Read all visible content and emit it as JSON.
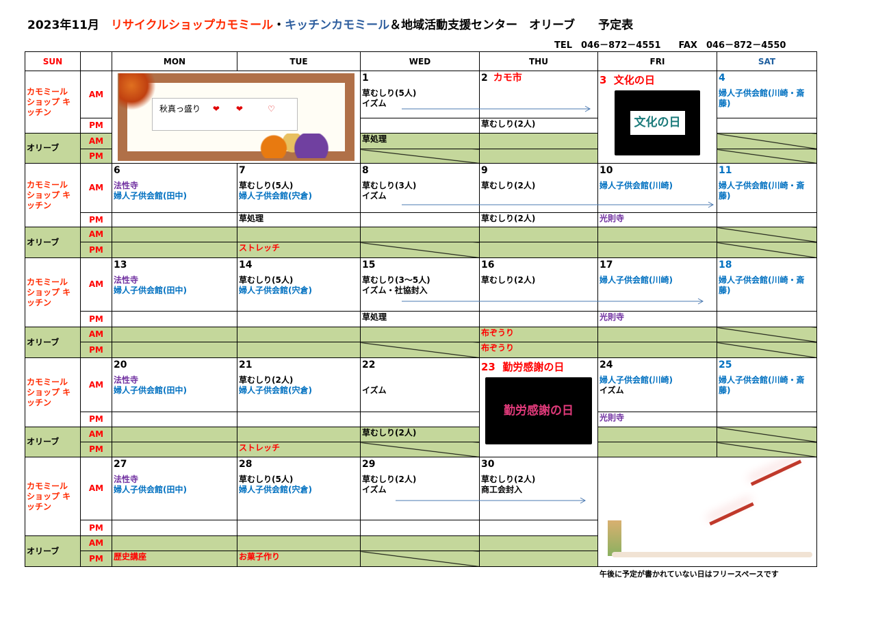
{
  "title": {
    "date": "2023年11月",
    "shop": "リサイクルショップカモミール",
    "dot": "・",
    "kitchen": "キッチンカモミール",
    "rest": "＆地域活動支援センター　オリーブ　　予定表"
  },
  "contact": "TEL　046－872－4551　　FAX　046－872－4550",
  "headers": [
    "SUN",
    "",
    "MON",
    "TUE",
    "WED",
    "THU",
    "FRI",
    "SAT"
  ],
  "group_shop": "カモミール ショップ キッチン",
  "group_olive": "オリーブ",
  "am": "AM",
  "pm": "PM",
  "autumn_card": {
    "text": "秋真っ盛り",
    "hearts": "❤　　❤　　　♡"
  },
  "bunka": {
    "num": "3",
    "name": "文化の日",
    "pic_text": "文化の日"
  },
  "kinro": {
    "num": "23",
    "name": "勤労感謝の日",
    "pic_text": "勤労感謝の日"
  },
  "footer": "午後に予定が書かれていない日はフリースペースです",
  "colors": {
    "olive": "#c4d79b",
    "red": "#ff0000",
    "blue": "#0070c0",
    "purple": "#7030a0"
  },
  "weeks": [
    {
      "days": [
        {
          "skip": true
        },
        {
          "skip": true
        },
        {
          "num": "1",
          "am": [
            {
              "t": "草むしり(5人)",
              "c": "black"
            },
            {
              "t": "イズム",
              "c": "black"
            }
          ],
          "pm": [],
          "oam": [
            {
              "t": "草処理",
              "c": "black"
            }
          ],
          "opm": "diag"
        },
        {
          "num": "2",
          "title": "カモ市",
          "am": [],
          "pm": [
            {
              "t": "草むしり(2人)",
              "c": "black"
            }
          ],
          "oam": [],
          "opm": []
        },
        {
          "special": "bunka"
        },
        {
          "num": "4",
          "numc": "blue",
          "am": [
            {
              "t": "婦人子供会館(川崎・斎藤)",
              "c": "blue"
            }
          ],
          "pm": [],
          "oam": "diag",
          "opm": "diag"
        }
      ]
    },
    {
      "days": [
        {
          "num": "6",
          "am": [
            {
              "t": "法性寺",
              "c": "purple"
            },
            {
              "t": "婦人子供会館(田中)",
              "c": "blue"
            }
          ],
          "pm": [],
          "oam": [],
          "opm": []
        },
        {
          "num": "7",
          "am": [
            {
              "t": "草むしり(5人)",
              "c": "black"
            },
            {
              "t": "婦人子供会館(宍倉)",
              "c": "blue"
            }
          ],
          "pm": [
            {
              "t": "草処理",
              "c": "black"
            }
          ],
          "oam": [],
          "opm": [
            {
              "t": "ストレッチ",
              "c": "red"
            }
          ]
        },
        {
          "num": "8",
          "am": [
            {
              "t": "草むしり(3人)",
              "c": "black"
            },
            {
              "t": "イズム",
              "c": "black"
            }
          ],
          "pm": [],
          "oam": [],
          "opm": "diag"
        },
        {
          "num": "9",
          "am": [
            {
              "t": "草むしり(2人)",
              "c": "black"
            }
          ],
          "pm": [
            {
              "t": "草むしり(2人)",
              "c": "black"
            }
          ],
          "oam": [],
          "opm": []
        },
        {
          "num": "10",
          "am": [
            {
              "t": "婦人子供会館(川崎)",
              "c": "blue"
            }
          ],
          "pm": [
            {
              "t": "光則寺",
              "c": "purple"
            }
          ],
          "oam": [],
          "opm": []
        },
        {
          "num": "11",
          "numc": "blue",
          "am": [
            {
              "t": "婦人子供会館(川崎・斎藤)",
              "c": "blue"
            }
          ],
          "pm": [],
          "oam": "diag",
          "opm": "diag"
        }
      ]
    },
    {
      "days": [
        {
          "num": "13",
          "am": [
            {
              "t": "法性寺",
              "c": "purple"
            },
            {
              "t": "婦人子供会館(田中)",
              "c": "blue"
            }
          ],
          "pm": [],
          "oam": [],
          "opm": []
        },
        {
          "num": "14",
          "am": [
            {
              "t": "草むしり(5人)",
              "c": "black"
            },
            {
              "t": "婦人子供会館(宍倉)",
              "c": "blue"
            }
          ],
          "pm": [],
          "oam": [],
          "opm": []
        },
        {
          "num": "15",
          "am": [
            {
              "t": "草むしり(3～5人)",
              "c": "black"
            },
            {
              "t": "イズム・社協封入",
              "c": "black"
            }
          ],
          "pm": [
            {
              "t": "草処理",
              "c": "black"
            }
          ],
          "oam": [],
          "opm": "diag"
        },
        {
          "num": "16",
          "am": [
            {
              "t": "草むしり(2人)",
              "c": "black"
            }
          ],
          "pm": [],
          "oam": [
            {
              "t": "布ぞうり",
              "c": "red"
            }
          ],
          "opm": [
            {
              "t": "布ぞうり",
              "c": "red"
            }
          ]
        },
        {
          "num": "17",
          "am": [
            {
              "t": "婦人子供会館(川崎)",
              "c": "blue"
            }
          ],
          "pm": [
            {
              "t": "光則寺",
              "c": "purple"
            }
          ],
          "oam": [],
          "opm": []
        },
        {
          "num": "18",
          "numc": "blue",
          "am": [
            {
              "t": "婦人子供会館(川崎・斎藤)",
              "c": "blue"
            }
          ],
          "pm": [],
          "oam": "diag",
          "opm": "diag"
        }
      ]
    },
    {
      "days": [
        {
          "num": "20",
          "am": [
            {
              "t": "法性寺",
              "c": "purple"
            },
            {
              "t": "婦人子供会館(田中)",
              "c": "blue"
            }
          ],
          "pm": [],
          "oam": [],
          "opm": []
        },
        {
          "num": "21",
          "am": [
            {
              "t": "草むしり(2人)",
              "c": "black"
            },
            {
              "t": "婦人子供会館(宍倉)",
              "c": "blue"
            }
          ],
          "pm": [],
          "oam": [],
          "opm": [
            {
              "t": "ストレッチ",
              "c": "red"
            }
          ]
        },
        {
          "num": "22",
          "am": [
            {
              "t": "",
              "c": "black"
            },
            {
              "t": "イズム",
              "c": "black"
            }
          ],
          "pm": [],
          "oam": [
            {
              "t": "草むしり(2人)",
              "c": "black"
            }
          ],
          "opm": "diag"
        },
        {
          "special": "kinro"
        },
        {
          "num": "24",
          "am": [
            {
              "t": "婦人子供会館(川崎)",
              "c": "blue"
            },
            {
              "t": "イズム",
              "c": "black"
            }
          ],
          "pm": [
            {
              "t": "光則寺",
              "c": "purple"
            }
          ],
          "oam": [],
          "opm": []
        },
        {
          "num": "25",
          "numc": "blue",
          "am": [
            {
              "t": "婦人子供会館(川崎・斎藤)",
              "c": "blue"
            }
          ],
          "pm": [],
          "oam": "diag",
          "opm": "diag"
        }
      ]
    },
    {
      "days": [
        {
          "num": "27",
          "am": [
            {
              "t": "法性寺",
              "c": "purple"
            },
            {
              "t": "婦人子供会館(田中)",
              "c": "blue"
            }
          ],
          "pm": [],
          "oam": [],
          "opm": [
            {
              "t": "歴史講座",
              "c": "red"
            }
          ]
        },
        {
          "num": "28",
          "am": [
            {
              "t": "草むしり(5人)",
              "c": "black"
            },
            {
              "t": "婦人子供会館(宍倉)",
              "c": "blue"
            }
          ],
          "pm": [],
          "oam": [],
          "opm": [
            {
              "t": "お菓子作り",
              "c": "red"
            }
          ]
        },
        {
          "num": "29",
          "am": [
            {
              "t": "草むしり(2人)",
              "c": "black"
            },
            {
              "t": "イズム",
              "c": "black"
            }
          ],
          "pm": [],
          "oam": [],
          "opm": "diag"
        },
        {
          "num": "30",
          "am": [
            {
              "t": "草むしり(2人)",
              "c": "black"
            },
            {
              "t": "商工会封入",
              "c": "black"
            }
          ],
          "pm": [],
          "oam": [],
          "opm": []
        },
        {
          "special": "dragonfly"
        },
        {
          "skip": true
        }
      ]
    }
  ]
}
